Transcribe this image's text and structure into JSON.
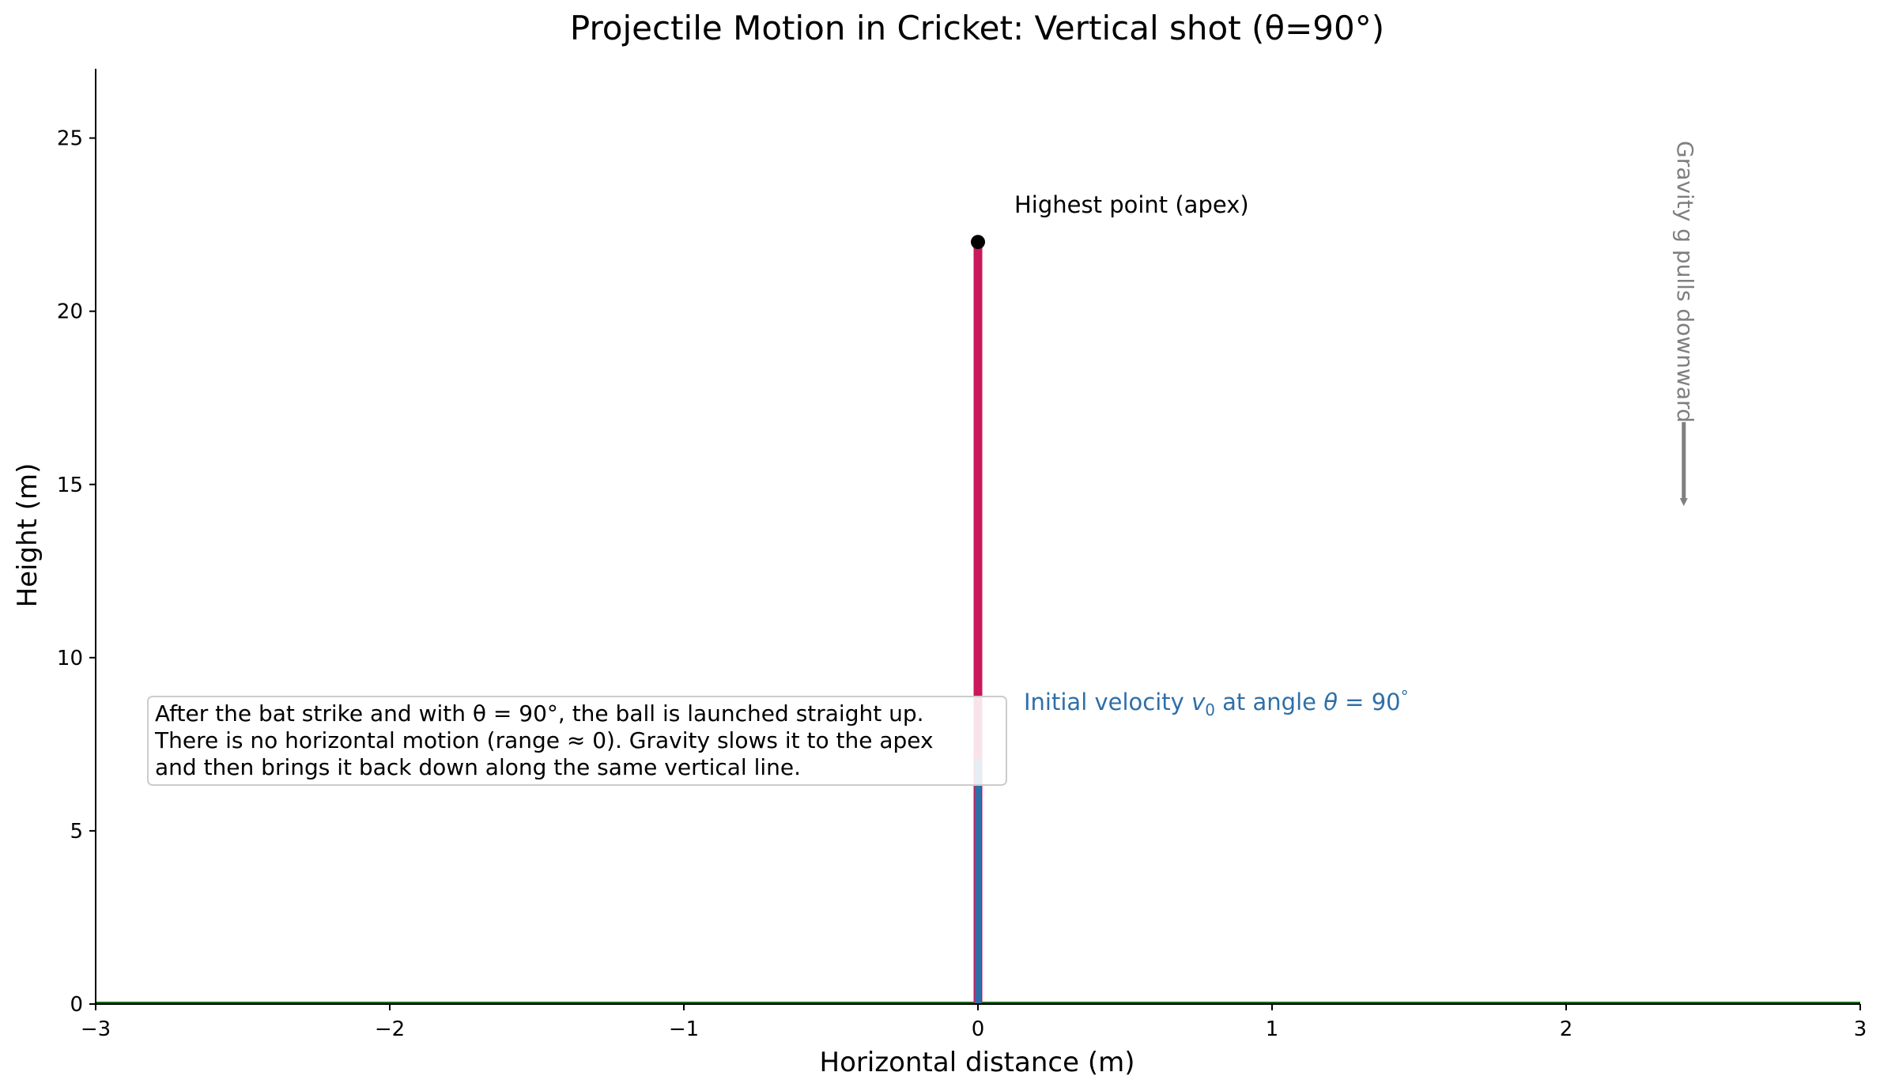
{
  "chart_data": {
    "type": "line",
    "title": "Projectile Motion in Cricket: Vertical shot (θ=90°)",
    "xlabel": "Horizontal distance (m)",
    "ylabel": "Height (m)",
    "xlim": [
      -3,
      3
    ],
    "ylim": [
      0,
      27
    ],
    "xticks": [
      -3,
      -2,
      -1,
      0,
      1,
      2,
      3
    ],
    "xtick_labels": [
      "−3",
      "−2",
      "−1",
      "0",
      "1",
      "2",
      "3"
    ],
    "yticks": [
      0,
      5,
      10,
      15,
      20,
      25
    ],
    "grid": false,
    "series": [
      {
        "x": [
          0,
          0
        ],
        "y": [
          0,
          22.0
        ],
        "color": "#c9185b"
      }
    ],
    "apex": {
      "x": 0,
      "y": 22.0,
      "label": "Highest point (apex)"
    },
    "velocity_arrow": {
      "x": 0,
      "y_from": 0,
      "y_to": 7.3,
      "color": "#2e6fa8",
      "label_prefix": "Initial velocity ",
      "label_mid": " at angle ",
      "label_suffix": "°"
    },
    "ground": {
      "y": 0,
      "color": "#1a6b1a"
    },
    "gravity_annotation": {
      "text": "Gravity g pulls downward",
      "x": 2.4,
      "y_from": 16.8,
      "y_to": 14.4,
      "color": "#7f7f7f"
    },
    "note": [
      "After the bat strike and with θ = 90°, the ball is launched straight up.",
      "There is no horizontal motion (range ≈ 0). Gravity slows it to the apex",
      "and then brings it back down along the same vertical line."
    ]
  }
}
